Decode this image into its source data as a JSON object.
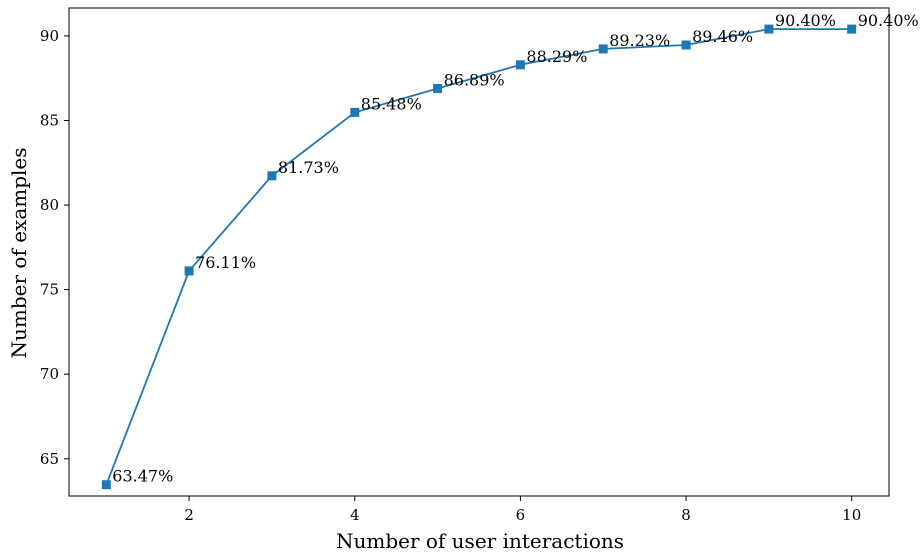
{
  "chart_data": {
    "type": "line",
    "title": "",
    "xlabel": "Number of user interactions",
    "ylabel": "Number of examples",
    "x": [
      1,
      2,
      3,
      4,
      5,
      6,
      7,
      8,
      9,
      10
    ],
    "series": [
      {
        "values": [
          63.47,
          76.11,
          81.73,
          85.48,
          86.89,
          88.29,
          89.23,
          89.46,
          90.4,
          90.4
        ],
        "data_labels": [
          "63.47%",
          "76.11%",
          "81.73%",
          "85.48%",
          "86.89%",
          "88.29%",
          "89.23%",
          "89.46%",
          "90.40%",
          "90.40%"
        ],
        "color": "#1f77b4",
        "marker": "square"
      }
    ],
    "xlim": [
      0.55,
      10.45
    ],
    "ylim": [
      62.8,
      91.65
    ],
    "xticks": [
      2,
      4,
      6,
      8,
      10
    ],
    "yticks": [
      65,
      70,
      75,
      80,
      85,
      90
    ],
    "grid": false,
    "legend": "none"
  }
}
